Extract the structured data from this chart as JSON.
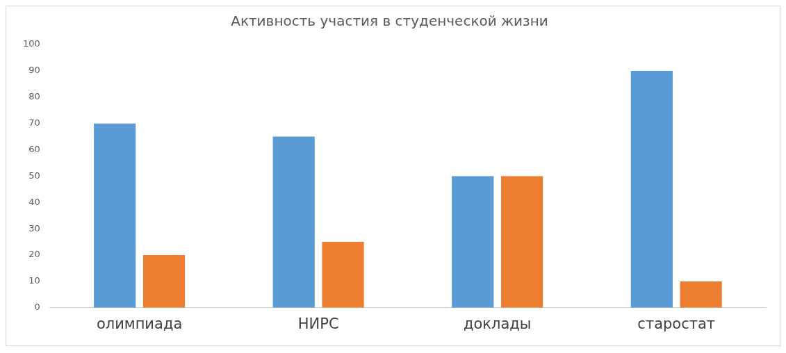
{
  "chart_data": {
    "type": "bar",
    "title": "Активность участия в студенческой жизни",
    "categories": [
      "олимпиада",
      "НИРС",
      "доклады",
      "старостат"
    ],
    "series": [
      {
        "color": "#5b9bd5",
        "values": [
          70,
          65,
          50,
          90
        ]
      },
      {
        "color": "#ed7d31",
        "values": [
          20,
          25,
          50,
          10
        ]
      }
    ],
    "ylim": [
      0,
      100
    ],
    "yticks": [
      0,
      10,
      20,
      30,
      40,
      50,
      60,
      70,
      80,
      90,
      100
    ],
    "grid": false,
    "legend": false
  }
}
